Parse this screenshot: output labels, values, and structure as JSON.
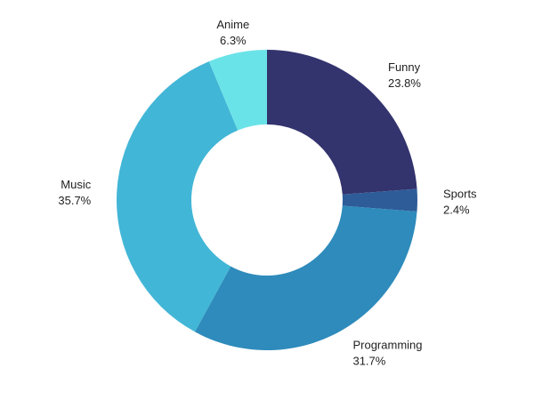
{
  "chart_data": {
    "type": "pie",
    "variant": "donut",
    "start": "12 o'clock",
    "direction": "clockwise",
    "slices": [
      {
        "label": "Funny",
        "value": 23.8,
        "pct_label": "23.8%",
        "color": "#33336E"
      },
      {
        "label": "Sports",
        "value": 2.4,
        "pct_label": "2.4%",
        "color": "#2E5C99"
      },
      {
        "label": "Programming",
        "value": 31.7,
        "pct_label": "31.7%",
        "color": "#2E8BBB"
      },
      {
        "label": "Music",
        "value": 35.7,
        "pct_label": "35.7%",
        "color": "#42B6D6"
      },
      {
        "label": "Anime",
        "value": 6.3,
        "pct_label": "6.3%",
        "color": "#6AE3E8"
      }
    ],
    "legend": "none"
  }
}
